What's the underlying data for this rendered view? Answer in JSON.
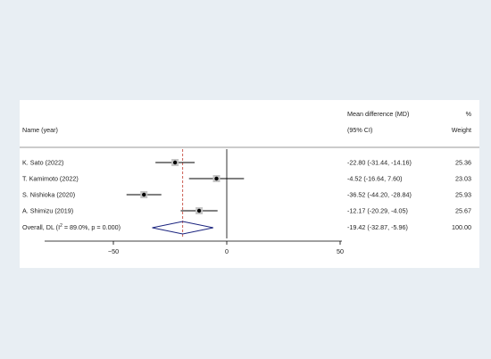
{
  "chart_data": {
    "type": "forest",
    "header": {
      "name_col": "Name (year)",
      "effect_col_line1": "Mean difference (MD)",
      "effect_col_line2": "(95% CI)",
      "weight_col_line1": "%",
      "weight_col_line2": "Weight"
    },
    "studies": [
      {
        "name": "K. Sato (2022)",
        "md": -22.8,
        "lo": -31.44,
        "hi": -14.16,
        "label": "-22.80 (-31.44, -14.16)",
        "weight": "25.36"
      },
      {
        "name": "T. Kamimoto (2022)",
        "md": -4.52,
        "lo": -16.64,
        "hi": 7.6,
        "label": "-4.52 (-16.64, 7.60)",
        "weight": "23.03"
      },
      {
        "name": "S. Nishioka (2020)",
        "md": -36.52,
        "lo": -44.2,
        "hi": -28.84,
        "label": "-36.52 (-44.20, -28.84)",
        "weight": "25.93"
      },
      {
        "name": "A. Shimizu (2019)",
        "md": -12.17,
        "lo": -20.29,
        "hi": -4.05,
        "label": "-12.17 (-20.29, -4.05)",
        "weight": "25.67"
      }
    ],
    "overall": {
      "name_prefix": "Overall, DL (I",
      "name_sup": "2",
      "name_suffix": " = 89.0%, p = 0.000)",
      "md": -19.42,
      "lo": -32.87,
      "hi": -5.96,
      "label": "-19.42 (-32.87, -5.96)",
      "weight": "100.00"
    },
    "x_ticks": [
      -50,
      0,
      50
    ],
    "x_tick_labels": [
      "−50",
      "0",
      "50"
    ],
    "xlim": [
      -100,
      50
    ],
    "reference_line": 0,
    "colors": {
      "background": "#e8eef3",
      "panel": "#ffffff",
      "study_line": "#000000",
      "diamond": "#1a237e",
      "overall_line": "#c0392b"
    }
  }
}
